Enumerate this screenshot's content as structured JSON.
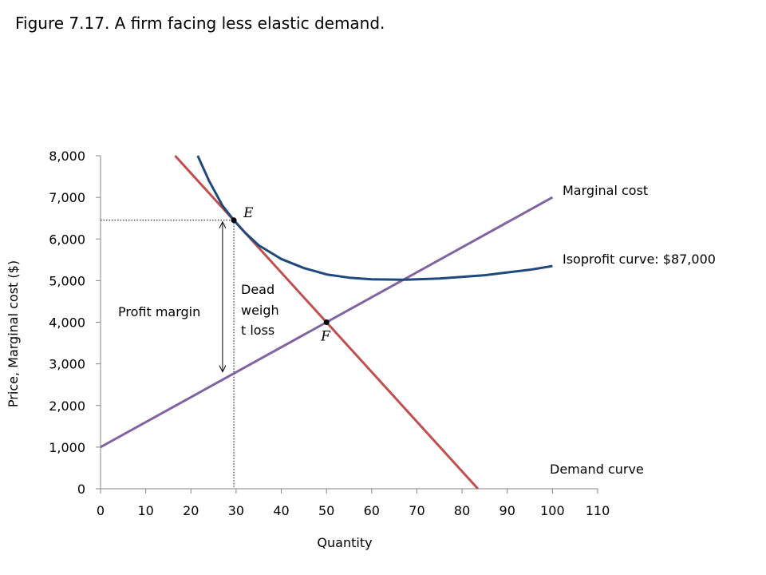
{
  "figure": {
    "title": "Figure 7.17. A firm facing less elastic demand."
  },
  "chart_data": {
    "type": "line",
    "title": "Figure 7.17. A firm facing less elastic demand.",
    "xlabel": "Quantity",
    "ylabel": "Price, Marginal cost ($)",
    "xlim": [
      0,
      110
    ],
    "ylim": [
      0,
      8000
    ],
    "x_ticks": [
      0,
      10,
      20,
      30,
      40,
      50,
      60,
      70,
      80,
      90,
      100,
      110
    ],
    "x_tick_labels": [
      "0",
      "10",
      "20",
      "30",
      "40",
      "50",
      "60",
      "70",
      "80",
      "90",
      "100",
      "110"
    ],
    "y_ticks": [
      0,
      1000,
      2000,
      3000,
      4000,
      5000,
      6000,
      7000,
      8000
    ],
    "y_tick_labels": [
      "0",
      "1,000",
      "2,000",
      "3,000",
      "4,000",
      "5,000",
      "6,000",
      "7,000",
      "8,000"
    ],
    "grid": false,
    "legend": "none",
    "series": [
      {
        "name": "Demand curve",
        "color": "#c0504d",
        "points": [
          [
            16.5,
            8000
          ],
          [
            83.5,
            0
          ]
        ]
      },
      {
        "name": "Marginal cost",
        "color": "#8064a2",
        "points": [
          [
            0,
            1000
          ],
          [
            100,
            7000
          ]
        ]
      },
      {
        "name": "Isoprofit curve: $87,000",
        "color": "#1f497d",
        "points": [
          [
            21.5,
            8000
          ],
          [
            24,
            7400
          ],
          [
            27,
            6800
          ],
          [
            29.5,
            6450
          ],
          [
            32,
            6150
          ],
          [
            35,
            5850
          ],
          [
            40,
            5520
          ],
          [
            45,
            5300
          ],
          [
            50,
            5150
          ],
          [
            55,
            5070
          ],
          [
            60,
            5030
          ],
          [
            67,
            5020
          ],
          [
            75,
            5050
          ],
          [
            85,
            5130
          ],
          [
            95,
            5260
          ],
          [
            100,
            5350
          ]
        ]
      }
    ],
    "points": [
      {
        "label": "E",
        "x": 29.5,
        "y": 6450
      },
      {
        "label": "F",
        "x": 50,
        "y": 4000
      }
    ],
    "reference_lines": {
      "x": 29.5,
      "y": 6450
    },
    "profit_margin_arrow": {
      "x": 27,
      "y_top": 6450,
      "y_bottom": 2770
    },
    "annotations": {
      "profit_margin": "Profit margin",
      "deadweight_loss": [
        "Dead",
        "weigh",
        "t loss"
      ]
    }
  }
}
